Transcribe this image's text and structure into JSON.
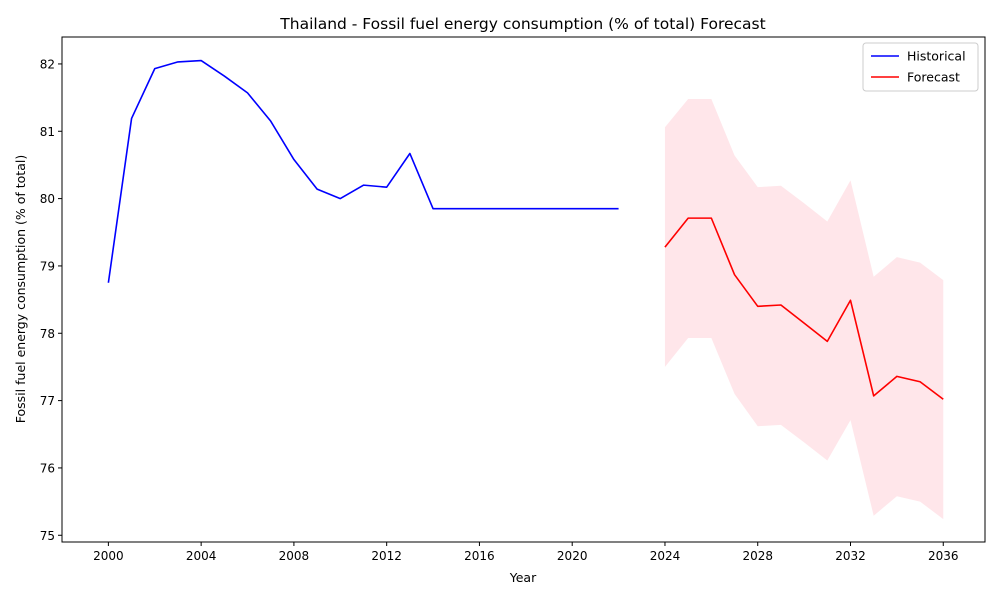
{
  "chart_data": {
    "type": "line",
    "title": "Thailand - Fossil fuel energy consumption (% of total) Forecast",
    "xlabel": "Year",
    "ylabel": "Fossil fuel energy consumption (% of total)",
    "xlim": [
      1998,
      2037.8
    ],
    "ylim": [
      74.9,
      82.4
    ],
    "xticks": [
      "2000",
      "2004",
      "2008",
      "2012",
      "2016",
      "2020",
      "2024",
      "2028",
      "2032",
      "2036"
    ],
    "yticks": [
      "75",
      "76",
      "77",
      "78",
      "79",
      "80",
      "81",
      "82"
    ],
    "legend_position": "top-right",
    "grid": false,
    "series": [
      {
        "name": "Historical",
        "color": "#0000ff",
        "x": [
          2000,
          2001,
          2002,
          2003,
          2004,
          2005,
          2006,
          2007,
          2008,
          2009,
          2010,
          2011,
          2012,
          2013,
          2014,
          2015,
          2016,
          2017,
          2018,
          2019,
          2020,
          2021,
          2022
        ],
        "y": [
          78.75,
          81.19,
          81.93,
          82.03,
          82.05,
          81.82,
          81.57,
          81.15,
          80.58,
          80.14,
          80.0,
          80.2,
          80.17,
          80.67,
          79.85,
          79.85,
          79.85,
          79.85,
          79.85,
          79.85,
          79.85,
          79.85,
          79.85
        ]
      },
      {
        "name": "Forecast",
        "color": "#ff0000",
        "x": [
          2024,
          2025,
          2026,
          2027,
          2028,
          2029,
          2030,
          2031,
          2032,
          2033,
          2034,
          2035,
          2036
        ],
        "y": [
          79.28,
          79.71,
          79.71,
          78.87,
          78.4,
          78.42,
          78.15,
          77.88,
          78.49,
          77.07,
          77.36,
          77.28,
          77.02
        ],
        "lower": [
          77.5,
          77.93,
          77.93,
          77.1,
          76.62,
          76.64,
          76.38,
          76.11,
          76.71,
          75.29,
          75.58,
          75.5,
          75.24
        ],
        "upper": [
          81.06,
          81.48,
          81.48,
          80.64,
          80.17,
          80.19,
          79.93,
          79.66,
          80.27,
          78.84,
          79.13,
          79.05,
          78.79
        ],
        "band_color": "#ffc0cb"
      }
    ]
  }
}
